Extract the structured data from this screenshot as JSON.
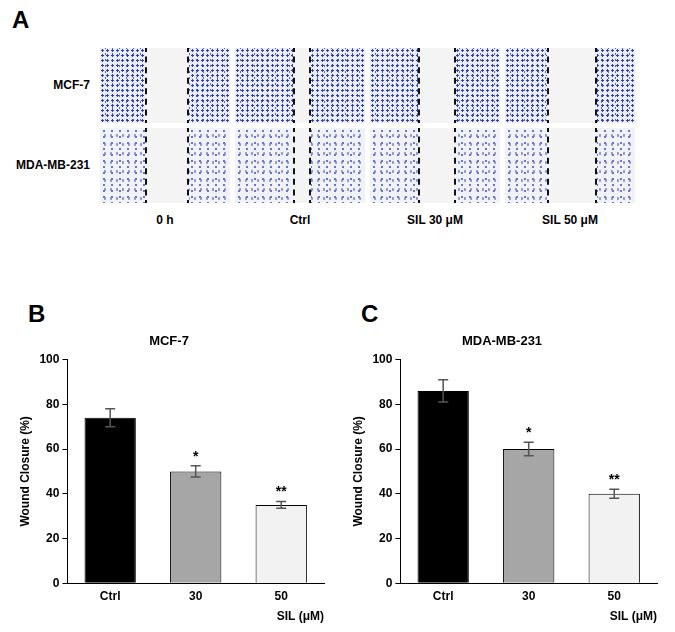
{
  "image_panel": {
    "panel": "A",
    "rows": [
      "MCF-7",
      "MDA-MB-231"
    ],
    "columns": [
      "0 h",
      "Ctrl",
      "SIL 30 μM",
      "SIL 50 μM"
    ]
  },
  "chart_data": [
    {
      "panel": "B",
      "type": "bar",
      "title": "MCF-7",
      "categories": [
        "Ctrl",
        "30",
        "50"
      ],
      "values": [
        74,
        50,
        35
      ],
      "errors": [
        4,
        2.5,
        1.5
      ],
      "colors": [
        "#000000",
        "#a6a6a6",
        "#f2f2f2"
      ],
      "annotations": [
        null,
        "*",
        "**"
      ],
      "x_label": "SIL (μM)",
      "y_label": "Wound Closure (%)",
      "ylim": [
        0,
        100
      ],
      "yticks": [
        0,
        20,
        40,
        60,
        80,
        100
      ],
      "grid": false
    },
    {
      "panel": "C",
      "type": "bar",
      "title": "MDA-MB-231",
      "categories": [
        "Ctrl",
        "30",
        "50"
      ],
      "values": [
        86,
        60,
        40
      ],
      "errors": [
        5,
        3,
        2
      ],
      "colors": [
        "#000000",
        "#a6a6a6",
        "#f2f2f2"
      ],
      "annotations": [
        null,
        "*",
        "**"
      ],
      "x_label": "SIL (μM)",
      "y_label": "Wound Closure (%)",
      "ylim": [
        0,
        100
      ],
      "yticks": [
        0,
        20,
        40,
        60,
        80,
        100
      ],
      "grid": false
    }
  ]
}
